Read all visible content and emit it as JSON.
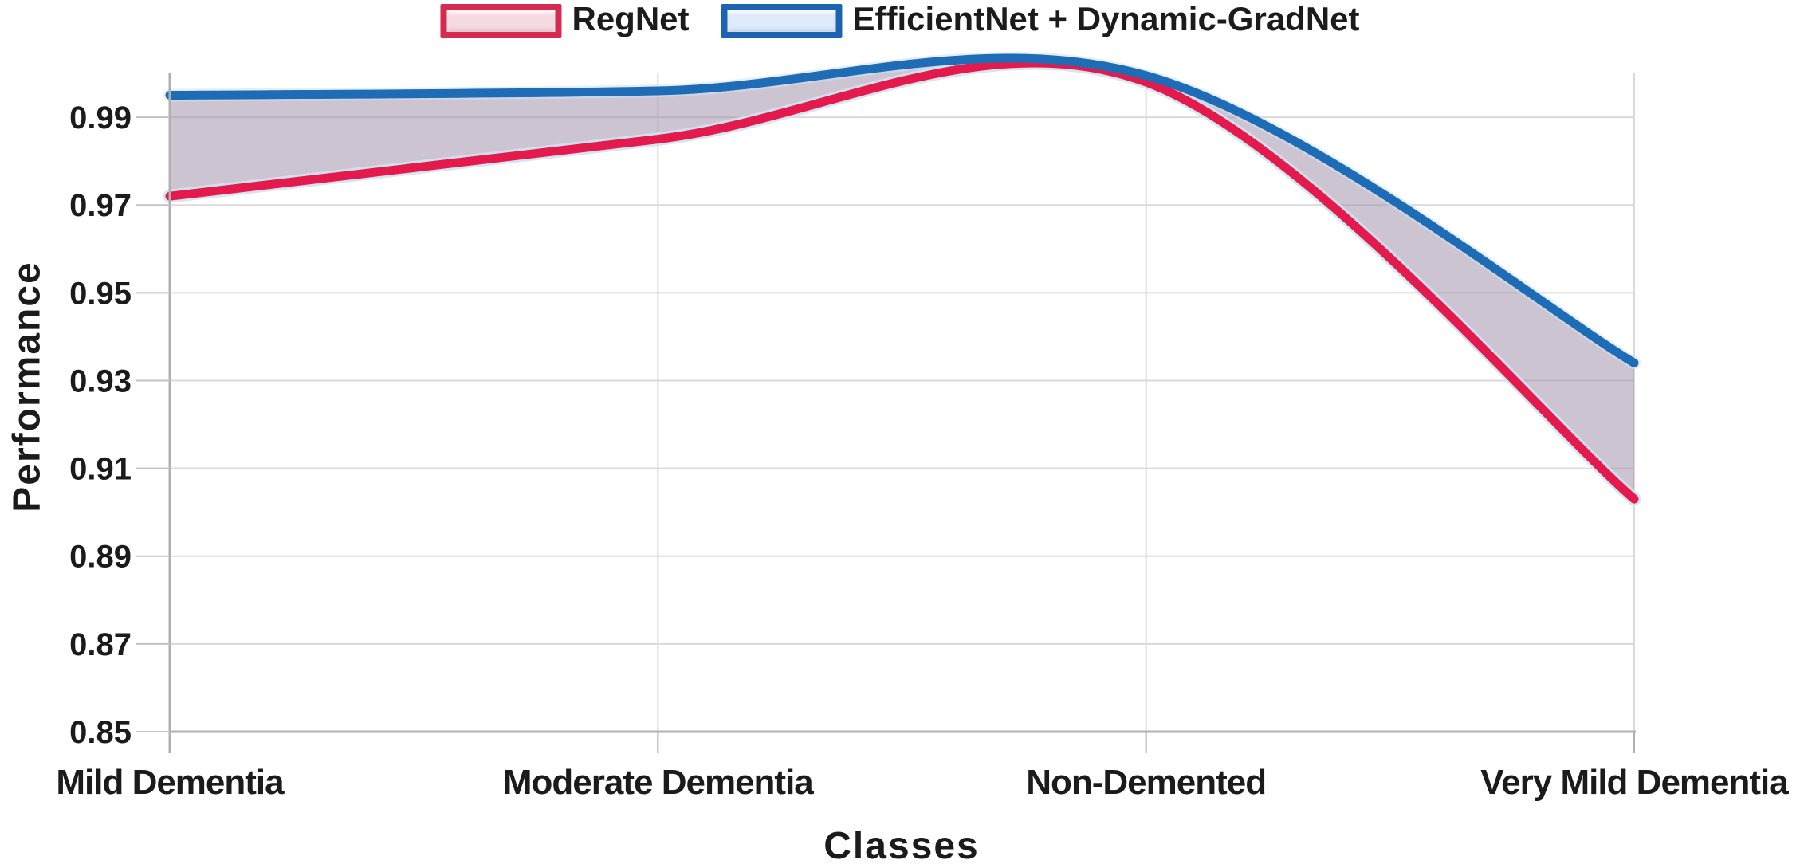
{
  "legend": {
    "items": [
      {
        "label": "RegNet",
        "swatch_border": "#d62b50",
        "swatch_fill": "#f6dae2"
      },
      {
        "label": "EfficientNet + Dynamic-GradNet",
        "swatch_border": "#1c64b2",
        "swatch_fill": "#dfeafa"
      }
    ]
  },
  "chart_data": {
    "type": "line",
    "title": "",
    "xlabel": "Classes",
    "ylabel": "Performance",
    "categories": [
      "Mild Dementia",
      "Moderate Dementia",
      "Non-Demented",
      "Very Mild Dementia"
    ],
    "series": [
      {
        "name": "RegNet",
        "color": "#e41a4d",
        "values": [
          0.972,
          0.985,
          0.998,
          0.903
        ]
      },
      {
        "name": "EfficientNet + Dynamic-GradNet",
        "color": "#1e6cb5",
        "values": [
          0.995,
          0.996,
          0.9995,
          0.934
        ]
      }
    ],
    "ylim": [
      0.85,
      1.0
    ],
    "yticks": [
      0.85,
      0.87,
      0.89,
      0.91,
      0.93,
      0.95,
      0.97,
      0.99
    ],
    "ytick_format_decimals": 2,
    "grid": true,
    "smoothed_lines": true,
    "legend_position": "top center",
    "fill_between_series": true,
    "fill_between_color": "rgba(164,148,173,0.55)",
    "line_halo_color": "#cfe2f3",
    "gridline_color": "#dadada",
    "axis_line_color": "#b0b0b0",
    "tick_color": "#c2c2c2",
    "text_color": "#1b1b1b"
  }
}
